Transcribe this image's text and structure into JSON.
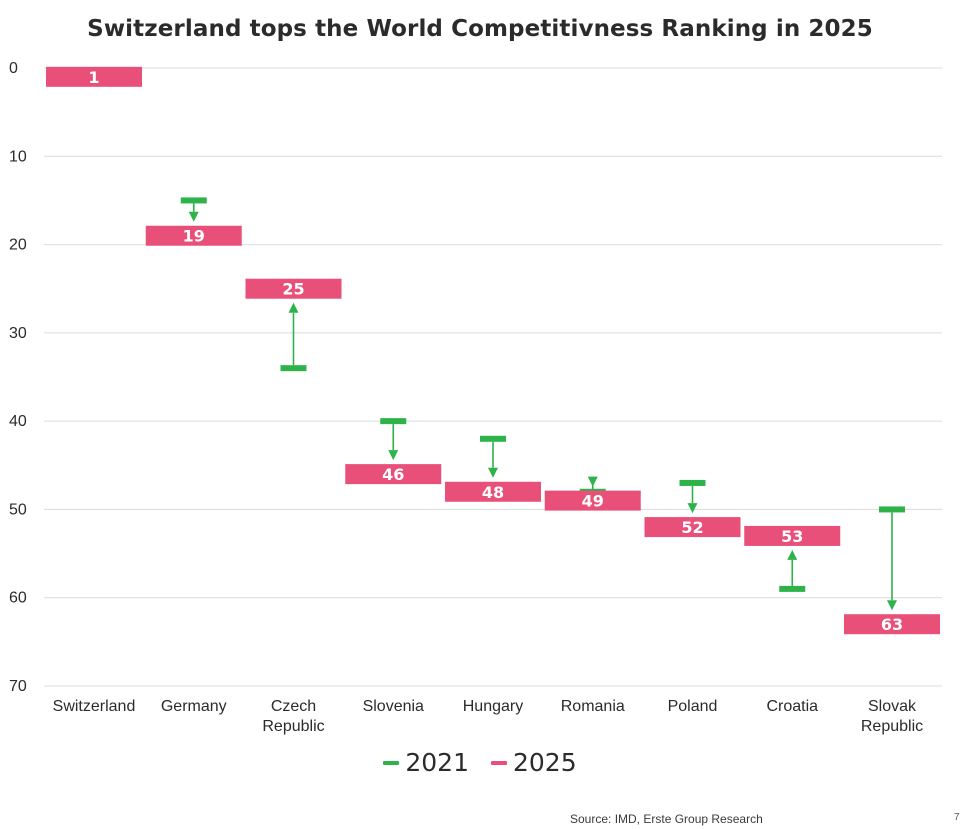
{
  "chart_data": {
    "type": "floating-bar",
    "title": "Switzerland tops the World Competitivness Ranking in 2025",
    "categories": [
      "Switzerland",
      "Germany",
      "Czech Republic",
      "Slovenia",
      "Hungary",
      "Romania",
      "Poland",
      "Croatia",
      "Slovak Republic"
    ],
    "category_lines": [
      [
        "Switzerland"
      ],
      [
        "Germany"
      ],
      [
        "Czech",
        "Republic"
      ],
      [
        "Slovenia"
      ],
      [
        "Hungary"
      ],
      [
        "Romania"
      ],
      [
        "Poland"
      ],
      [
        "Croatia"
      ],
      [
        "Slovak",
        "Republic"
      ]
    ],
    "series": [
      {
        "name": "2021",
        "values": [
          1,
          15,
          34,
          40,
          42,
          48,
          47,
          59,
          50
        ],
        "color": "#2db34a"
      },
      {
        "name": "2025",
        "values": [
          1,
          19,
          25,
          46,
          48,
          49,
          52,
          53,
          63
        ],
        "color": "#e8507a"
      }
    ],
    "y_axis": {
      "reversed": true,
      "ylim": [
        0,
        70
      ],
      "ticks": [
        0,
        10,
        20,
        30,
        40,
        50,
        60,
        70
      ]
    },
    "grid": true,
    "legend_position": "bottom-center"
  },
  "legend": [
    {
      "label": "2021",
      "color": "#2db34a"
    },
    {
      "label": "2025",
      "color": "#e8507a"
    }
  ],
  "footer": {
    "source": "Source: IMD, Erste Group Research",
    "page_number": "7"
  }
}
